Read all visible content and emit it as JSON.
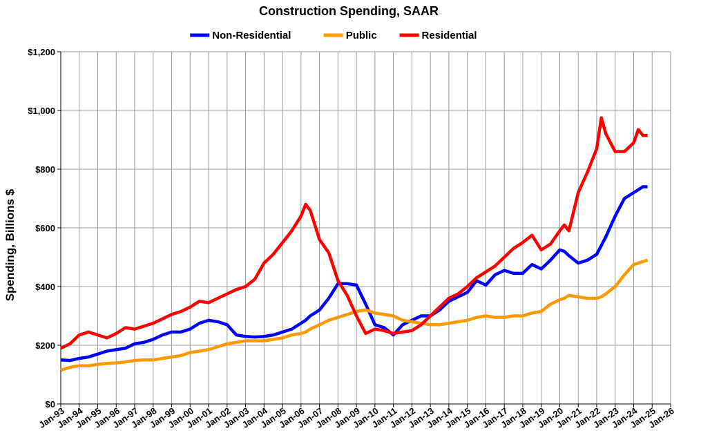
{
  "chart_data": {
    "type": "line",
    "title": "Construction Spending, SAAR",
    "y_label": "Spending, Billions $",
    "grid": true,
    "legend": "top",
    "xlim": [
      1993,
      2026
    ],
    "ylim": [
      0,
      1200
    ],
    "yticks": [
      {
        "value": 0,
        "label": "$0"
      },
      {
        "value": 200,
        "label": "$200"
      },
      {
        "value": 400,
        "label": "$400"
      },
      {
        "value": 600,
        "label": "$600"
      },
      {
        "value": 800,
        "label": "$800"
      },
      {
        "value": 1000,
        "label": "$1,000"
      },
      {
        "value": 1200,
        "label": "$1,200"
      }
    ],
    "xticks": [
      {
        "value": 1993,
        "label": "Jan-93"
      },
      {
        "value": 1994,
        "label": "Jan-94"
      },
      {
        "value": 1995,
        "label": "Jan-95"
      },
      {
        "value": 1996,
        "label": "Jan-96"
      },
      {
        "value": 1997,
        "label": "Jan-97"
      },
      {
        "value": 1998,
        "label": "Jan-98"
      },
      {
        "value": 1999,
        "label": "Jan-99"
      },
      {
        "value": 2000,
        "label": "Jan-00"
      },
      {
        "value": 2001,
        "label": "Jan-01"
      },
      {
        "value": 2002,
        "label": "Jan-02"
      },
      {
        "value": 2003,
        "label": "Jan-03"
      },
      {
        "value": 2004,
        "label": "Jan-04"
      },
      {
        "value": 2005,
        "label": "Jan-05"
      },
      {
        "value": 2006,
        "label": "Jan-06"
      },
      {
        "value": 2007,
        "label": "Jan-07"
      },
      {
        "value": 2008,
        "label": "Jan-08"
      },
      {
        "value": 2009,
        "label": "Jan-09"
      },
      {
        "value": 2010,
        "label": "Jan-10"
      },
      {
        "value": 2011,
        "label": "Jan-11"
      },
      {
        "value": 2012,
        "label": "Jan-12"
      },
      {
        "value": 2013,
        "label": "Jan-13"
      },
      {
        "value": 2014,
        "label": "Jan-14"
      },
      {
        "value": 2015,
        "label": "Jan-15"
      },
      {
        "value": 2016,
        "label": "Jan-16"
      },
      {
        "value": 2017,
        "label": "Jan-17"
      },
      {
        "value": 2018,
        "label": "Jan-18"
      },
      {
        "value": 2019,
        "label": "Jan-19"
      },
      {
        "value": 2020,
        "label": "Jan-20"
      },
      {
        "value": 2021,
        "label": "Jan-21"
      },
      {
        "value": 2022,
        "label": "Jan-22"
      },
      {
        "value": 2023,
        "label": "Jan-23"
      },
      {
        "value": 2024,
        "label": "Jan-24"
      },
      {
        "value": 2025,
        "label": "Jan-25"
      },
      {
        "value": 2026,
        "label": "Jan-26"
      }
    ],
    "x": [
      1993,
      1993.5,
      1994,
      1994.5,
      1995,
      1995.5,
      1996,
      1996.5,
      1997,
      1997.5,
      1998,
      1998.5,
      1999,
      1999.5,
      2000,
      2000.5,
      2001,
      2001.5,
      2002,
      2002.5,
      2003,
      2003.5,
      2004,
      2004.5,
      2005,
      2005.5,
      2006,
      2006.25,
      2006.5,
      2007,
      2007.5,
      2008,
      2008.5,
      2009,
      2009.5,
      2010,
      2010.5,
      2011,
      2011.5,
      2012,
      2012.5,
      2013,
      2013.5,
      2014,
      2014.5,
      2015,
      2015.5,
      2016,
      2016.5,
      2017,
      2017.5,
      2018,
      2018.5,
      2019,
      2019.5,
      2020,
      2020.25,
      2020.5,
      2021,
      2021.5,
      2022,
      2022.25,
      2022.5,
      2023,
      2023.5,
      2024,
      2024.25,
      2024.5,
      2024.75
    ],
    "series": [
      {
        "name": "Non-Residential",
        "color": "#0000ff",
        "values": [
          150,
          148,
          155,
          160,
          170,
          180,
          185,
          190,
          205,
          210,
          220,
          235,
          245,
          245,
          255,
          275,
          285,
          280,
          270,
          235,
          230,
          228,
          230,
          235,
          245,
          255,
          275,
          285,
          300,
          320,
          360,
          410,
          410,
          405,
          340,
          270,
          260,
          235,
          270,
          285,
          300,
          300,
          320,
          350,
          365,
          380,
          420,
          405,
          440,
          455,
          445,
          445,
          475,
          460,
          490,
          525,
          520,
          505,
          480,
          490,
          510,
          540,
          570,
          640,
          700,
          720,
          730,
          740,
          740
        ]
      },
      {
        "name": "Public",
        "color": "#ff9900",
        "values": [
          115,
          125,
          130,
          130,
          135,
          138,
          140,
          143,
          148,
          150,
          150,
          155,
          160,
          165,
          175,
          180,
          185,
          195,
          205,
          210,
          215,
          215,
          215,
          220,
          225,
          235,
          240,
          245,
          255,
          270,
          285,
          295,
          305,
          315,
          320,
          310,
          305,
          300,
          285,
          280,
          275,
          270,
          270,
          275,
          280,
          285,
          295,
          300,
          295,
          295,
          300,
          300,
          310,
          315,
          340,
          355,
          360,
          370,
          365,
          360,
          360,
          365,
          375,
          400,
          440,
          475,
          480,
          485,
          490
        ]
      },
      {
        "name": "Residential",
        "color": "#ff0000",
        "values": [
          190,
          205,
          235,
          245,
          235,
          225,
          240,
          260,
          255,
          265,
          275,
          290,
          305,
          315,
          330,
          350,
          345,
          360,
          375,
          390,
          400,
          425,
          480,
          510,
          550,
          590,
          640,
          680,
          660,
          560,
          515,
          420,
          370,
          300,
          240,
          255,
          250,
          240,
          245,
          250,
          270,
          300,
          330,
          360,
          375,
          400,
          430,
          450,
          470,
          500,
          530,
          550,
          575,
          525,
          545,
          590,
          610,
          590,
          720,
          790,
          870,
          975,
          920,
          860,
          860,
          890,
          935,
          915,
          915
        ]
      }
    ]
  }
}
